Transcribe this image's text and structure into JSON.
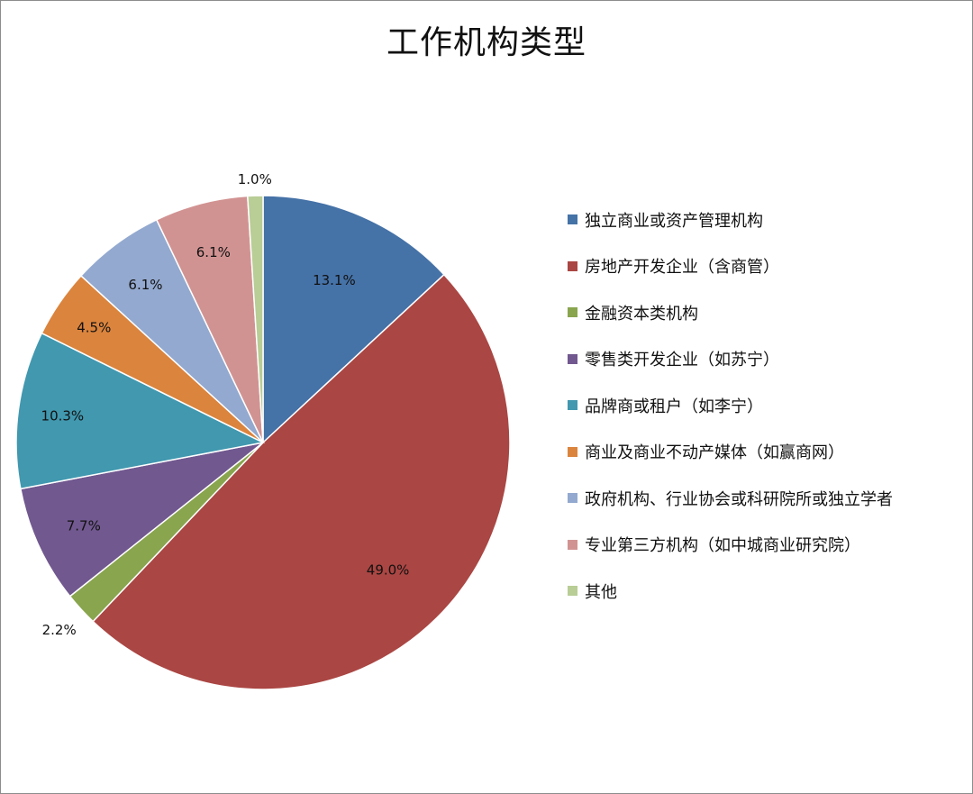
{
  "chart_data": {
    "type": "pie",
    "title": "工作机构类型",
    "legend_position": "right",
    "slices": [
      {
        "label": "独立商业或资产管理机构",
        "value": 13.1,
        "value_label": "13.1%",
        "color": "#4572A7"
      },
      {
        "label": "房地产开发企业（含商管）",
        "value": 49.0,
        "value_label": "49.0%",
        "color": "#AA4643"
      },
      {
        "label": "金融资本类机构",
        "value": 2.2,
        "value_label": "2.2%",
        "color": "#89A54E"
      },
      {
        "label": "零售类开发企业（如苏宁）",
        "value": 7.7,
        "value_label": "7.7%",
        "color": "#71588F"
      },
      {
        "label": "品牌商或租户（如李宁）",
        "value": 10.3,
        "value_label": "10.3%",
        "color": "#4198AF"
      },
      {
        "label": "商业及商业不动产媒体（如赢商网）",
        "value": 4.5,
        "value_label": "4.5%",
        "color": "#DB843D"
      },
      {
        "label": "政府机构、行业协会或科研院所或独立学者",
        "value": 6.1,
        "value_label": "6.1%",
        "color": "#93A9CF"
      },
      {
        "label": "专业第三方机构（如中城商业研究院）",
        "value": 6.1,
        "value_label": "6.1%",
        "color": "#D19392"
      },
      {
        "label": "其他",
        "value": 1.0,
        "value_label": "1.0%",
        "color": "#B9CD96"
      }
    ]
  }
}
